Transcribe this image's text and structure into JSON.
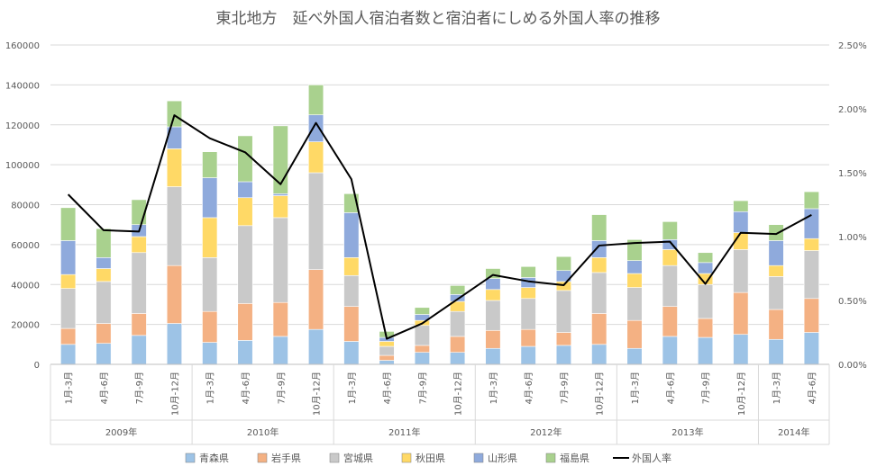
{
  "chart_data": {
    "type": "bar",
    "stacked": true,
    "title": "東北地方　延べ外国人宿泊者数と宿泊者にしめる外国人率の推移",
    "categories": [
      "1月-3月",
      "4月-6月",
      "7月-9月",
      "10月-12月",
      "1月-3月",
      "4月-6月",
      "7月-9月",
      "10月-12月",
      "1月-3月",
      "4月-6月",
      "7月-9月",
      "10月-12月",
      "1月-3月",
      "4月-6月",
      "7月-9月",
      "10月-12月",
      "1月-3月",
      "4月-6月",
      "7月-9月",
      "10月-12月",
      "1月-3月",
      "4月-6月"
    ],
    "years": [
      {
        "label": "2009年",
        "span": 4
      },
      {
        "label": "2010年",
        "span": 4
      },
      {
        "label": "2011年",
        "span": 4
      },
      {
        "label": "2012年",
        "span": 4
      },
      {
        "label": "2013年",
        "span": 4
      },
      {
        "label": "2014年",
        "span": 2
      }
    ],
    "series": [
      {
        "name": "青森県",
        "color": "#9dc3e6",
        "values": [
          10000,
          10500,
          14500,
          20500,
          11000,
          12000,
          14000,
          17500,
          11500,
          2000,
          6000,
          6000,
          8000,
          9000,
          9500,
          10000,
          8000,
          14000,
          13500,
          15000,
          12500,
          16000
        ]
      },
      {
        "name": "岩手県",
        "color": "#f4b183",
        "values": [
          8000,
          10000,
          11000,
          29000,
          15500,
          18500,
          17000,
          30000,
          17500,
          2500,
          3500,
          8000,
          9000,
          8500,
          6500,
          15500,
          14000,
          15000,
          9500,
          21000,
          15000,
          17000
        ]
      },
      {
        "name": "宮城県",
        "color": "#c9c9c9",
        "values": [
          20000,
          21000,
          30500,
          39500,
          27000,
          39000,
          42500,
          48500,
          15500,
          4500,
          10000,
          12500,
          15000,
          15500,
          21000,
          20500,
          16500,
          20500,
          17000,
          21500,
          16500,
          24000
        ]
      },
      {
        "name": "秋田県",
        "color": "#ffd966",
        "values": [
          7000,
          6500,
          8000,
          19000,
          20000,
          14000,
          11000,
          15500,
          9000,
          2500,
          2500,
          5000,
          5500,
          5500,
          4500,
          7500,
          7000,
          8000,
          5500,
          8500,
          5500,
          6000
        ]
      },
      {
        "name": "山形県",
        "color": "#8faadc",
        "values": [
          17000,
          5500,
          6000,
          11000,
          20000,
          8000,
          1000,
          13500,
          22500,
          2000,
          3000,
          3500,
          5500,
          5000,
          5500,
          8500,
          6500,
          5000,
          5500,
          10500,
          12500,
          15000
        ]
      },
      {
        "name": "福島県",
        "color": "#a9d18e",
        "values": [
          16500,
          14500,
          12500,
          13000,
          13000,
          23000,
          34000,
          15000,
          9500,
          3000,
          3500,
          4500,
          5000,
          5500,
          7000,
          13000,
          10500,
          9000,
          5000,
          5500,
          8000,
          8500
        ]
      }
    ],
    "line_series": {
      "name": "外国人率",
      "color": "#000000",
      "values": [
        1.33,
        1.05,
        1.04,
        1.95,
        1.77,
        1.66,
        1.41,
        1.89,
        1.45,
        0.2,
        0.32,
        0.51,
        0.7,
        0.65,
        0.62,
        0.93,
        0.95,
        0.96,
        0.63,
        1.03,
        1.02,
        1.17
      ]
    },
    "y_left": {
      "min": 0,
      "max": 160000,
      "step": 20000,
      "ticks": [
        "0",
        "20000",
        "40000",
        "60000",
        "80000",
        "100000",
        "120000",
        "140000",
        "160000"
      ]
    },
    "y_right": {
      "min": 0,
      "max": 2.5,
      "step": 0.5,
      "ticks": [
        "0.00%",
        "0.50%",
        "1.00%",
        "1.50%",
        "2.00%",
        "2.50%"
      ]
    },
    "grid": true,
    "legend_position": "bottom"
  }
}
